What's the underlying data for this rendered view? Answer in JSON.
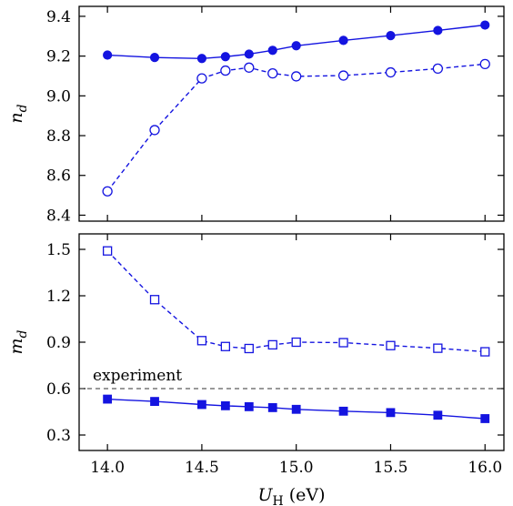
{
  "chart_data": [
    {
      "type": "line",
      "ylabel": "n",
      "ylabel_sub": "d",
      "xlim": [
        13.85,
        16.1
      ],
      "ylim": [
        8.37,
        9.45
      ],
      "yticks": [
        8.4,
        8.6,
        8.8,
        9.0,
        9.2,
        9.4
      ],
      "ytick_labels": [
        "8.4",
        "8.6",
        "8.8",
        "9.0",
        "9.2",
        "9.4"
      ],
      "xticks": [
        14.0,
        14.5,
        15.0,
        15.5,
        16.0
      ],
      "color": "#1414e0",
      "x": [
        14.0,
        14.25,
        14.5,
        14.625,
        14.75,
        14.875,
        15.0,
        15.25,
        15.5,
        15.75,
        16.0
      ],
      "series": [
        {
          "marker": "filled-circle",
          "line": "solid",
          "values": [
            9.205,
            9.193,
            9.188,
            9.197,
            9.21,
            9.229,
            9.252,
            9.279,
            9.303,
            9.329,
            9.356
          ]
        },
        {
          "marker": "open-circle",
          "line": "dashed",
          "values": [
            8.52,
            8.828,
            9.088,
            9.127,
            9.142,
            9.113,
            9.098,
            9.102,
            9.118,
            9.137,
            9.16
          ]
        }
      ]
    },
    {
      "type": "line",
      "ylabel": "m",
      "ylabel_sub": "d",
      "xlabel": "U",
      "xlabel_sub": "H",
      "xlabel_unit": " (eV)",
      "xlim": [
        13.85,
        16.1
      ],
      "ylim": [
        0.2,
        1.6
      ],
      "yticks": [
        0.3,
        0.6,
        0.9,
        1.2,
        1.5
      ],
      "ytick_labels": [
        "0.3",
        "0.6",
        "0.9",
        "1.2",
        "1.5"
      ],
      "xticks": [
        14.0,
        14.5,
        15.0,
        15.5,
        16.0
      ],
      "xtick_labels": [
        "14.0",
        "14.5",
        "15.0",
        "15.5",
        "16.0"
      ],
      "color": "#1414e0",
      "x": [
        14.0,
        14.25,
        14.5,
        14.625,
        14.75,
        14.875,
        15.0,
        15.25,
        15.5,
        15.75,
        16.0
      ],
      "series": [
        {
          "marker": "open-square",
          "line": "dashed",
          "values": [
            1.49,
            1.175,
            0.91,
            0.872,
            0.859,
            0.883,
            0.9,
            0.897,
            0.878,
            0.861,
            0.838
          ]
        },
        {
          "marker": "filled-square",
          "line": "solid",
          "values": [
            0.532,
            0.517,
            0.497,
            0.489,
            0.483,
            0.477,
            0.466,
            0.454,
            0.445,
            0.428,
            0.406
          ]
        }
      ],
      "reference_line": {
        "y": 0.6,
        "label": "experiment",
        "line": "dashed"
      }
    }
  ]
}
